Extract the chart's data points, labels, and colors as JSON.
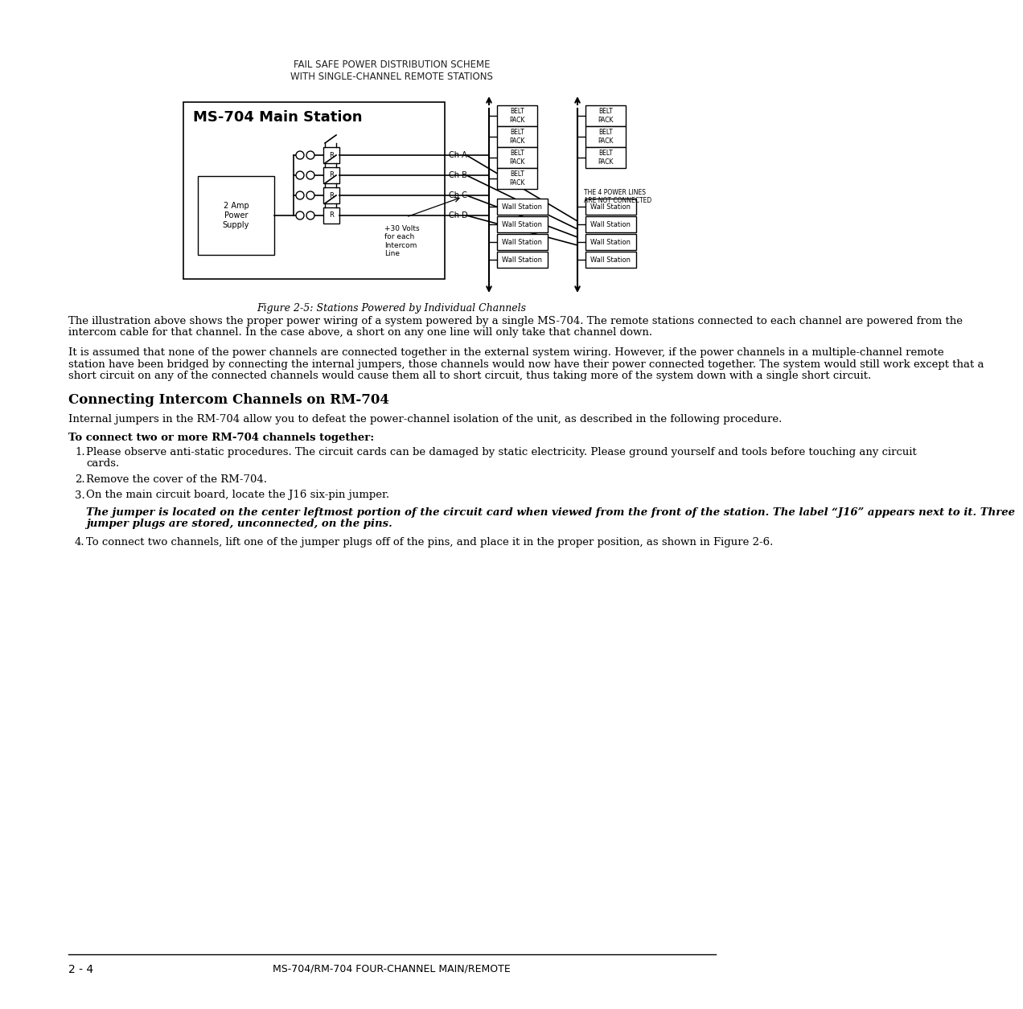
{
  "page_title_line1": "FAIL SAFE POWER DISTRIBUTION SCHEME",
  "page_title_line2": "WITH SINGLE-CHANNEL REMOTE STATIONS",
  "figure_caption": "Figure 2-5: Stations Powered by Individual Channels",
  "ms704_label": "MS-704 Main Station",
  "power_supply_label": "2 Amp\nPower\nSupply",
  "channels": [
    "Ch A",
    "Ch B",
    "Ch C",
    "Ch D"
  ],
  "belt_pack_label": "BELT\nPACK",
  "wall_station_label": "Wall Station",
  "voltage_label": "+30 Volts\nfor each\nIntercom\nLine",
  "the4power_label": "THE 4 POWER LINES\nARE NOT CONNECTED",
  "footer_left": "2 - 4",
  "footer_right": "MS-704/RM-704 FOUR-CHANNEL MAIN/REMOTE",
  "body_paragraphs": [
    "The illustration above shows the proper power wiring of a system powered by a single MS-704. The remote stations connected to each channel are powered from the intercom cable for that channel. In the case above, a short on any one line will only take that channel down.",
    "It is assumed that none of the power channels are connected together in the external system wiring. However, if the power channels in a multiple-channel remote station have been bridged by connecting the internal jumpers, those channels would now have their power connected together. The system would still work except that a short circuit on any of the connected channels would cause them all to short circuit, thus taking more of the system down with a single short circuit."
  ],
  "section_heading": "Connecting Intercom Channels on RM-704",
  "section_para1": "Internal jumpers in the RM-704 allow you to defeat the power-channel isolation of the unit, as described in the following procedure.",
  "bold_heading": "To connect two or more RM-704 channels together:",
  "numbered_items": [
    "Please observe anti-static procedures. The circuit cards can be damaged by static electricity. Please ground yourself and tools before touching any circuit cards.",
    "Remove the cover of the RM-704.",
    "On the main circuit board, locate the J16 six-pin jumper."
  ],
  "italic_bold_para": "The jumper is located on the center leftmost portion of the circuit card when viewed from the front of the station.  The label “J16” appears next to it. Three jumper plugs are stored, unconnected, on the pins.",
  "item4": "To connect two channels, lift one of the jumper plugs off of the pins, and place it in the proper position, as shown in Figure 2-6.",
  "bg_color": "#ffffff",
  "text_color": "#000000"
}
